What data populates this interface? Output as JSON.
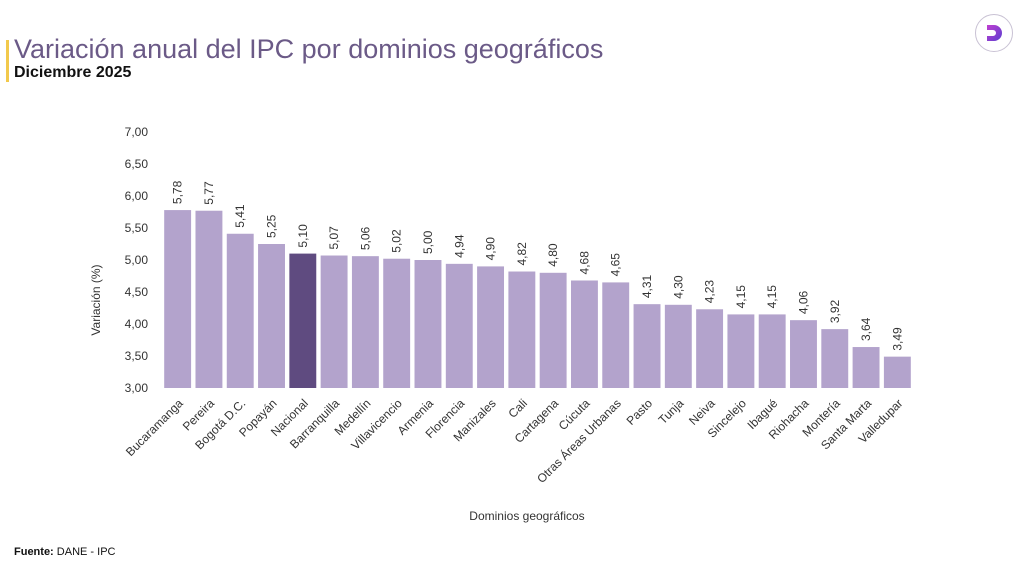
{
  "header": {
    "title": "Variación anual del IPC por dominios geográficos",
    "subtitle": "Diciembre 2025"
  },
  "logo": {
    "icon": "d-logo-icon",
    "letter": "D"
  },
  "footer": {
    "source_label": "Fuente:",
    "source_value": "DANE - IPC"
  },
  "chart_data": {
    "type": "bar",
    "title": "",
    "xlabel": "Dominios geográficos",
    "ylabel": "Variación (%)",
    "ylim": [
      3,
      7
    ],
    "yticks": [
      "3,00",
      "3,50",
      "4,00",
      "4,50",
      "5,00",
      "5,50",
      "6,00",
      "6,50",
      "7,00"
    ],
    "grid": false,
    "categories": [
      "Bucaramanga",
      "Pereira",
      "Bogotá D.C.",
      "Popayán",
      "Nacional",
      "Barranquilla",
      "Medellín",
      "Villavicencio",
      "Armenia",
      "Florencia",
      "Manizales",
      "Cali",
      "Cartagena",
      "Cúcuta",
      "Otras Áreas Urbanas",
      "Pasto",
      "Tunja",
      "Neiva",
      "Sincelejo",
      "Ibagué",
      "Riohacha",
      "Montería",
      "Santa Marta",
      "Valledupar"
    ],
    "values": [
      5.78,
      5.77,
      5.41,
      5.25,
      5.1,
      5.07,
      5.06,
      5.02,
      5.0,
      4.94,
      4.9,
      4.82,
      4.8,
      4.68,
      4.65,
      4.31,
      4.3,
      4.23,
      4.15,
      4.15,
      4.06,
      3.92,
      3.64,
      3.49
    ],
    "data_labels": [
      "5,78",
      "5,77",
      "5,41",
      "5,25",
      "5,10",
      "5,07",
      "5,06",
      "5,02",
      "5,00",
      "4,94",
      "4,90",
      "4,82",
      "4,80",
      "4,68",
      "4,65",
      "4,31",
      "4,30",
      "4,23",
      "4,15",
      "4,15",
      "4,06",
      "3,92",
      "3,64",
      "3,49"
    ],
    "colors": {
      "bar": "#b3a3cc",
      "highlight": "#5f4b80",
      "highlight_category": "Nacional"
    }
  }
}
